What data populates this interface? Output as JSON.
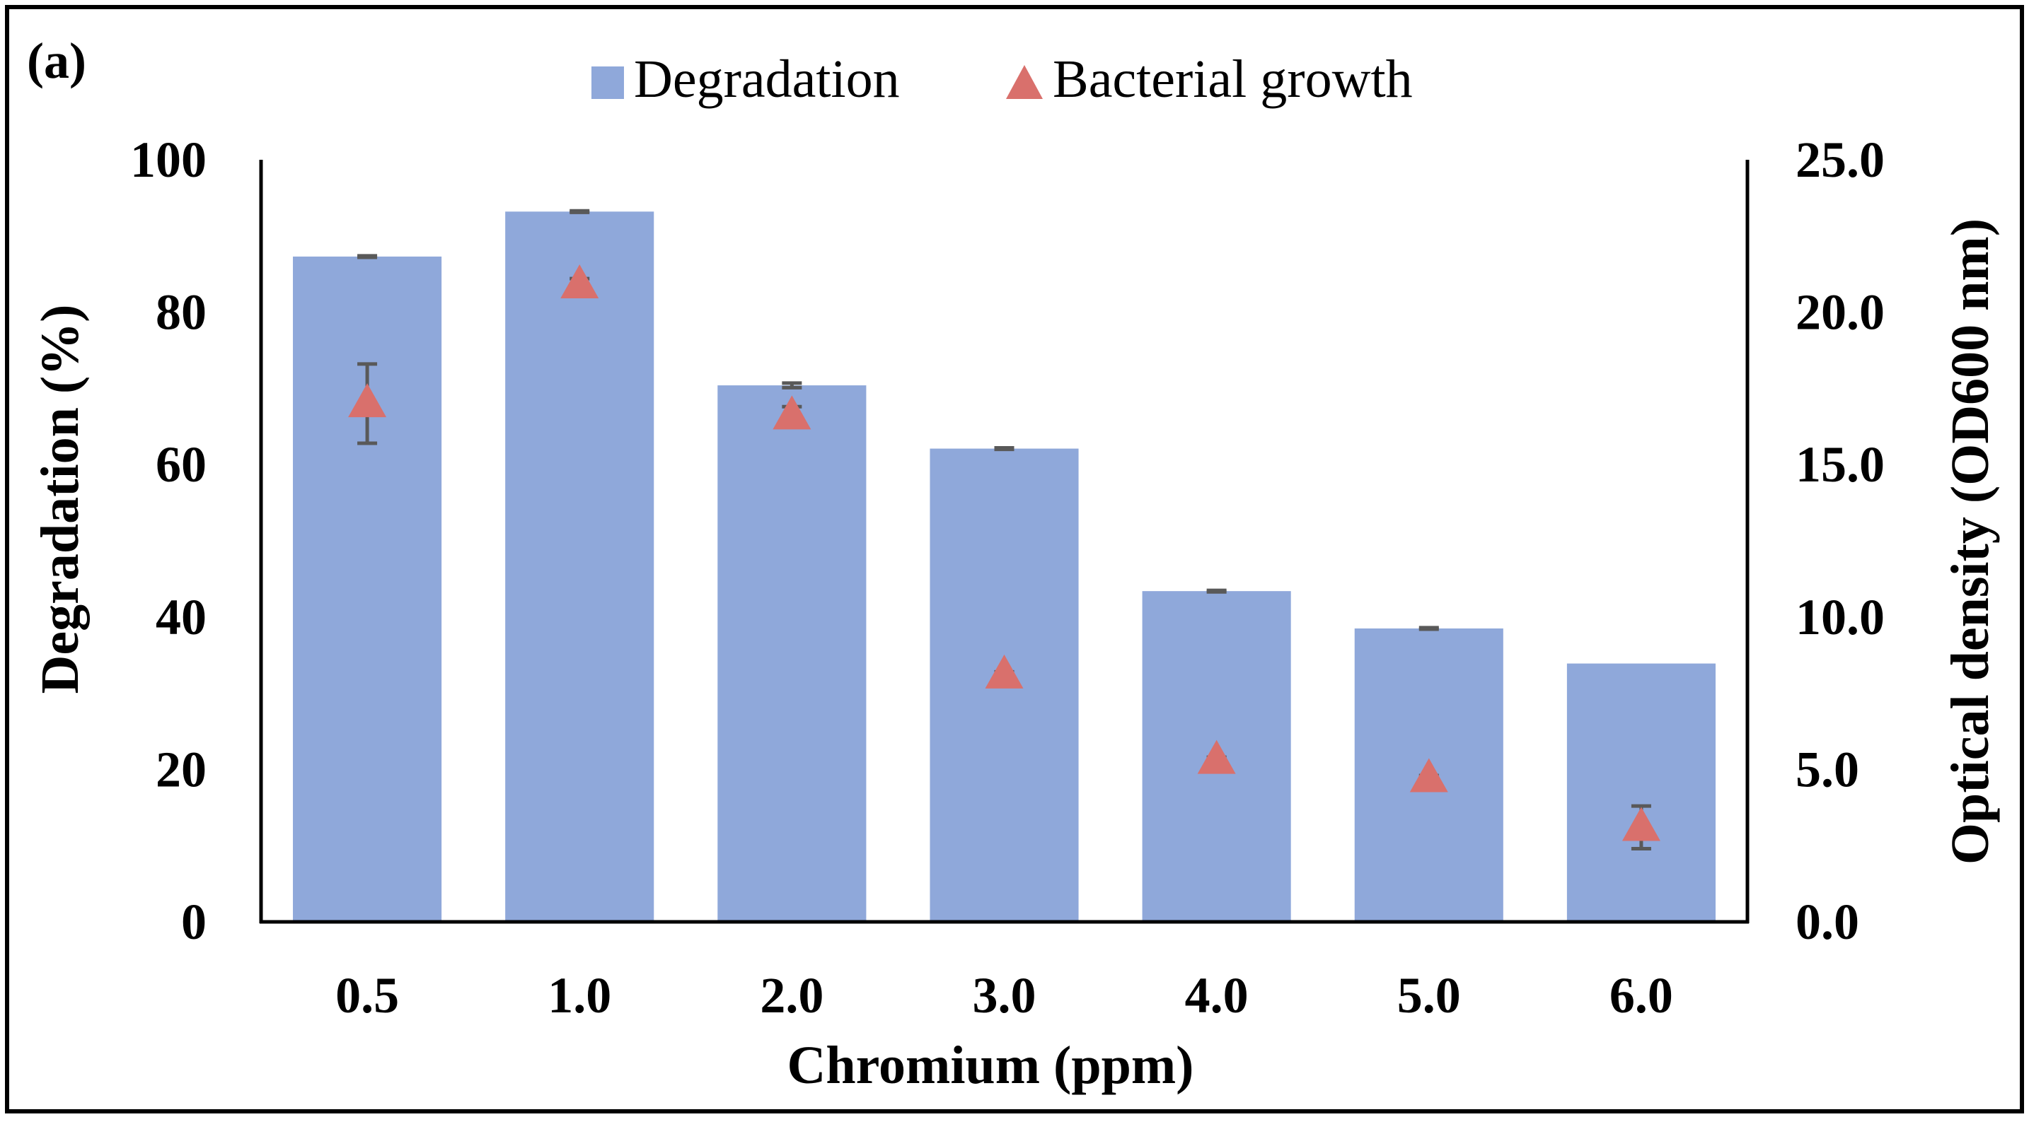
{
  "panel_label": "(a)",
  "colors": {
    "bar": "#8FA8DA",
    "marker": "#D9706C",
    "error_bar": "#595959",
    "axis": "#000000",
    "frame": "#000000"
  },
  "chart_data": {
    "type": "bar",
    "title": "",
    "xlabel": "Chromium (ppm)",
    "ylabel": "Degradation (%)",
    "y2label": "Optical density (OD600 nm)",
    "categories": [
      "0.5",
      "1.0",
      "2.0",
      "3.0",
      "4.0",
      "5.0",
      "6.0"
    ],
    "ylim": [
      0,
      100
    ],
    "y2lim": [
      0,
      25
    ],
    "yticks": [
      "0",
      "20",
      "40",
      "60",
      "80",
      "100"
    ],
    "y2ticks": [
      "0.0",
      "5.0",
      "10.0",
      "15.0",
      "20.0",
      "25.0"
    ],
    "legend_position": "top-center",
    "grid": false,
    "series": [
      {
        "name": "Degradation",
        "type": "bar",
        "axis": "left",
        "values": [
          87.3,
          93.2,
          70.4,
          62.1,
          43.4,
          38.5,
          33.9
        ],
        "errors": [
          0.1,
          0.1,
          0.3,
          0.1,
          0.1,
          0.1,
          0
        ]
      },
      {
        "name": "Bacterial growth",
        "type": "scatter",
        "marker": "triangle",
        "axis": "right",
        "values": [
          17.0,
          20.9,
          16.6,
          8.1,
          5.3,
          4.7,
          3.1
        ],
        "errors": [
          1.3,
          0.2,
          0.3,
          0.1,
          0.1,
          0.1,
          0.7
        ]
      }
    ]
  }
}
